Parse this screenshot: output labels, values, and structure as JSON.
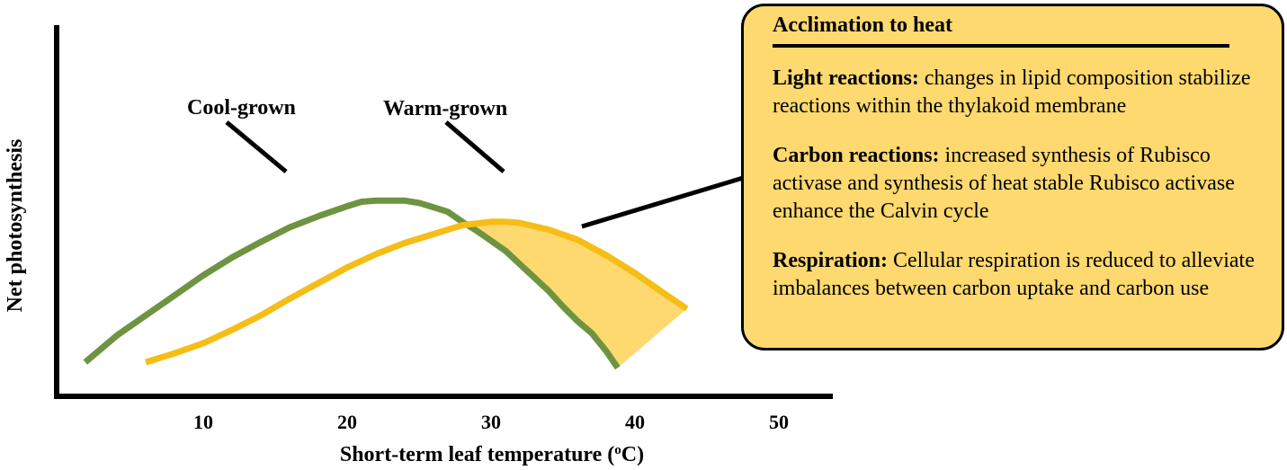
{
  "chart_data": {
    "type": "line",
    "title": "",
    "xlabel": "Short-term leaf temperature (",
    "xlabel_sup": "o",
    "xlabel_suffix": "C)",
    "ylabel": "Net photosynthesis",
    "xlim": [
      0,
      55
    ],
    "ylim": [
      0,
      1.0
    ],
    "xticks": [
      10,
      20,
      30,
      40,
      50
    ],
    "xtick_labels": [
      "10",
      "20",
      "30",
      "40",
      "50"
    ],
    "series": [
      {
        "name": "Cool-grown",
        "label": "Cool-grown",
        "color": "#6e9441",
        "x": [
          1.8,
          4,
          6,
          8,
          10,
          12,
          14,
          16,
          18,
          20,
          21,
          22,
          23,
          24,
          25,
          26,
          27,
          28,
          29,
          30,
          31,
          32,
          33,
          34,
          35,
          36,
          37,
          38,
          38.8
        ],
        "y": [
          0.04,
          0.16,
          0.25,
          0.34,
          0.43,
          0.51,
          0.58,
          0.645,
          0.695,
          0.74,
          0.76,
          0.765,
          0.765,
          0.765,
          0.755,
          0.735,
          0.715,
          0.67,
          0.63,
          0.585,
          0.54,
          0.48,
          0.42,
          0.36,
          0.29,
          0.225,
          0.17,
          0.09,
          0.015
        ]
      },
      {
        "name": "Warm-grown",
        "label": "Warm-grown",
        "color": "#f6bd16",
        "x": [
          6,
          8,
          10,
          12,
          14,
          16,
          18,
          20,
          22,
          24,
          26,
          28,
          30,
          31,
          32,
          34,
          36,
          38,
          40,
          42,
          43.6
        ],
        "y": [
          0.04,
          0.08,
          0.125,
          0.185,
          0.25,
          0.325,
          0.395,
          0.465,
          0.525,
          0.575,
          0.615,
          0.655,
          0.67,
          0.67,
          0.665,
          0.635,
          0.59,
          0.52,
          0.44,
          0.35,
          0.28
        ]
      }
    ],
    "annotations": {
      "acclimation_region": "area between Warm-grown and Cool-grown curves at high temperature"
    }
  },
  "info_box": {
    "title": "Acclimation to heat",
    "sections": [
      {
        "lead": "Light reactions:",
        "text": " changes in lipid composition stabilize reactions within the thylakoid membrane"
      },
      {
        "lead": "Carbon reactions:",
        "text": " increased synthesis of Rubisco activase and synthesis of heat stable Rubisco activase enhance the Calvin cycle"
      },
      {
        "lead": "Respiration:",
        "text": " Cellular respiration is reduced to alleviate imbalances between carbon uptake and carbon use"
      }
    ]
  },
  "colors": {
    "cool": "#6e9441",
    "warm": "#f6bd16",
    "fill": "#fdd96f",
    "axis": "#000000"
  }
}
